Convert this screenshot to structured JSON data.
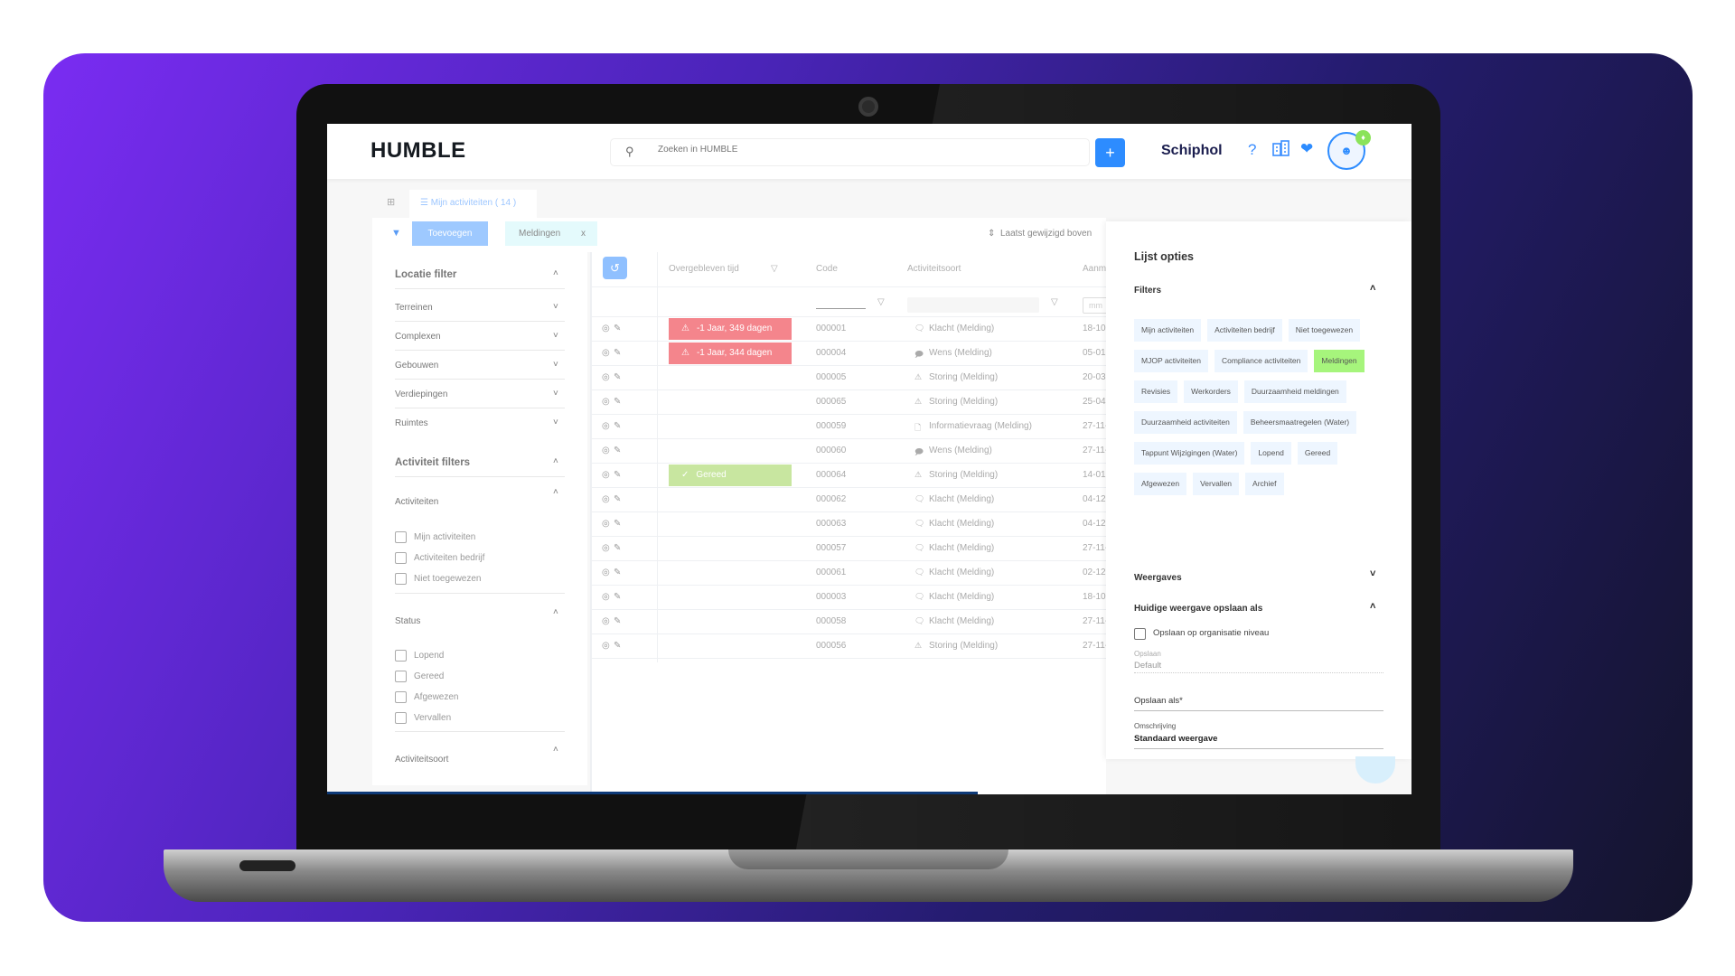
{
  "header": {
    "logo": "HUMBLE",
    "search_placeholder": "Zoeken in HUMBLE",
    "add_label": "+",
    "organization": "Schiphol",
    "help_label": "?"
  },
  "tabs": [
    {
      "label": "Mijn activiteiten ( 14 )"
    }
  ],
  "toolbar": {
    "add_filter_label": "Toevoegen",
    "active_filter": "Meldingen",
    "remove_label": "x",
    "sort_label": "Laatst gewijzigd boven"
  },
  "sidebar": {
    "location_title": "Locatie filter",
    "location_items": [
      "Terreinen",
      "Complexen",
      "Gebouwen",
      "Verdiepingen",
      "Ruimtes"
    ],
    "activity_title": "Activiteit filters",
    "activities_label": "Activiteiten",
    "activities": [
      "Mijn activiteiten",
      "Activiteiten bedrijf",
      "Niet toegewezen"
    ],
    "status_label": "Status",
    "statuses": [
      "Lopend",
      "Gereed",
      "Afgewezen",
      "Vervallen"
    ],
    "type_label": "Activiteitsoort"
  },
  "table": {
    "columns": [
      "Overgebleven tijd",
      "Code",
      "Activiteitsoort",
      "Aanm"
    ],
    "date_placeholder": "mm",
    "rows": [
      {
        "remaining": "-1 Jaar, 349 dagen",
        "status": "overdue",
        "code": "000001",
        "type": "Klacht (Melding)",
        "icon": "chat-icon",
        "date": "18-10-"
      },
      {
        "remaining": "-1 Jaar, 344 dagen",
        "status": "overdue",
        "code": "000004",
        "type": "Wens (Melding)",
        "icon": "chat-dots-icon",
        "date": "05-01"
      },
      {
        "remaining": "",
        "status": "",
        "code": "000005",
        "type": "Storing (Melding)",
        "icon": "warning-icon",
        "date": "20-03"
      },
      {
        "remaining": "",
        "status": "",
        "code": "000065",
        "type": "Storing (Melding)",
        "icon": "warning-icon",
        "date": "25-04"
      },
      {
        "remaining": "",
        "status": "",
        "code": "000059",
        "type": "Informatievraag (Melding)",
        "icon": "file-icon",
        "date": "27-11-"
      },
      {
        "remaining": "",
        "status": "",
        "code": "000060",
        "type": "Wens (Melding)",
        "icon": "chat-dots-icon",
        "date": "27-11-"
      },
      {
        "remaining": "Gereed",
        "status": "done",
        "code": "000064",
        "type": "Storing (Melding)",
        "icon": "warning-icon",
        "date": "14-01-"
      },
      {
        "remaining": "",
        "status": "",
        "code": "000062",
        "type": "Klacht (Melding)",
        "icon": "chat-icon",
        "date": "04-12-"
      },
      {
        "remaining": "",
        "status": "",
        "code": "000063",
        "type": "Klacht (Melding)",
        "icon": "chat-icon",
        "date": "04-12-"
      },
      {
        "remaining": "",
        "status": "",
        "code": "000057",
        "type": "Klacht (Melding)",
        "icon": "chat-icon",
        "date": "27-11-"
      },
      {
        "remaining": "",
        "status": "",
        "code": "000061",
        "type": "Klacht (Melding)",
        "icon": "chat-icon",
        "date": "02-12-"
      },
      {
        "remaining": "",
        "status": "",
        "code": "000003",
        "type": "Klacht (Melding)",
        "icon": "chat-icon",
        "date": "18-10-"
      },
      {
        "remaining": "",
        "status": "",
        "code": "000058",
        "type": "Klacht (Melding)",
        "icon": "chat-icon",
        "date": "27-11-"
      },
      {
        "remaining": "",
        "status": "",
        "code": "000056",
        "type": "Storing (Melding)",
        "icon": "warning-icon",
        "date": "27-11-"
      }
    ]
  },
  "panel": {
    "title": "Lijst opties",
    "filters_title": "Filters",
    "filters": [
      {
        "label": "Mijn activiteiten",
        "active": false
      },
      {
        "label": "Activiteiten bedrijf",
        "active": false
      },
      {
        "label": "Niet toegewezen",
        "active": false
      },
      {
        "label": "MJOP activiteiten",
        "active": false
      },
      {
        "label": "Compliance activiteiten",
        "active": false
      },
      {
        "label": "Meldingen",
        "active": true
      },
      {
        "label": "Revisies",
        "active": false
      },
      {
        "label": "Werkorders",
        "active": false
      },
      {
        "label": "Duurzaamheid meldingen",
        "active": false
      },
      {
        "label": "Duurzaamheid activiteiten",
        "active": false
      },
      {
        "label": "Beheersmaatregelen (Water)",
        "active": false
      },
      {
        "label": "Tappunt Wijzigingen (Water)",
        "active": false
      },
      {
        "label": "Lopend",
        "active": false
      },
      {
        "label": "Gereed",
        "active": false
      },
      {
        "label": "Afgewezen",
        "active": false
      },
      {
        "label": "Vervallen",
        "active": false
      },
      {
        "label": "Archief",
        "active": false
      }
    ],
    "views_title": "Weergaves",
    "save_title": "Huidige weergave opslaan als",
    "org_level_label": "Opslaan op organisatie niveau",
    "save_label": "Opslaan",
    "save_value": "Default",
    "save_as_label": "Opslaan als*",
    "description_label": "Omschrijving",
    "description_value": "Standaard weergave"
  },
  "colors": {
    "primary": "#2d8cff",
    "overdue": "#f4858c",
    "done": "#c8e6a0",
    "active_chip": "#a6f57c",
    "notification": "#8ae35a"
  }
}
